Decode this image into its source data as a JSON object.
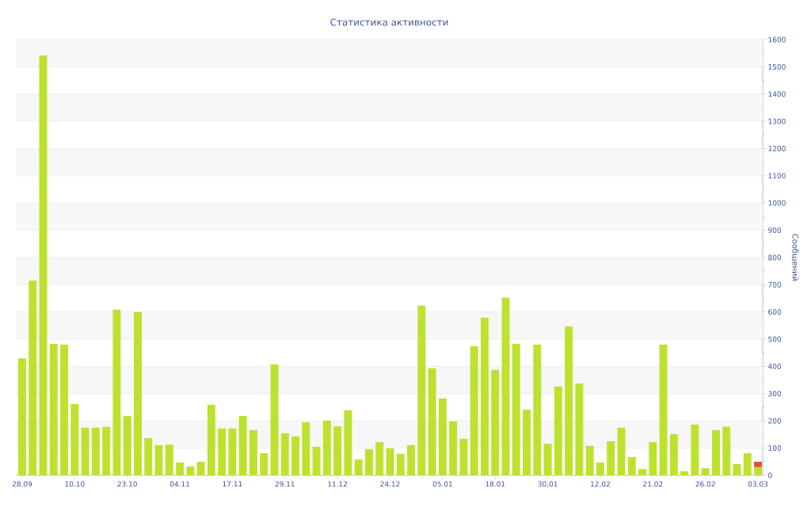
{
  "chart_data": {
    "type": "bar",
    "title": "Статистика активности",
    "ylabel": "Сообщений",
    "categories": [
      "28.09",
      null,
      null,
      null,
      null,
      "10.10",
      null,
      null,
      null,
      null,
      "23.10",
      null,
      null,
      null,
      null,
      "04.11",
      null,
      null,
      null,
      null,
      "17.11",
      null,
      null,
      null,
      null,
      "29.11",
      null,
      null,
      null,
      null,
      "11.12",
      null,
      null,
      null,
      null,
      "24.12",
      null,
      null,
      null,
      null,
      "05.01",
      null,
      null,
      null,
      null,
      "18.01",
      null,
      null,
      null,
      null,
      "30.01",
      null,
      null,
      null,
      null,
      "12.02",
      null,
      null,
      null,
      null,
      "21.02",
      null,
      null,
      null,
      null,
      "26.02",
      null,
      null,
      null,
      null,
      "03.03"
    ],
    "stacked": true,
    "series": [
      {
        "color": "#bce22f",
        "values": [
          430,
          715,
          1542,
          483,
          480,
          262,
          175,
          175,
          178,
          608,
          218,
          600,
          137,
          111,
          113,
          47,
          32,
          50,
          259,
          172,
          172,
          218,
          166,
          81,
          407,
          154,
          143,
          195,
          105,
          201,
          180,
          239,
          58,
          96,
          122,
          99,
          79,
          111,
          623,
          393,
          282,
          198,
          134,
          474,
          579,
          387,
          652,
          483,
          241,
          480,
          116,
          326,
          547,
          337,
          108,
          47,
          125,
          175,
          67,
          23,
          122,
          480,
          151,
          15,
          186,
          26,
          166,
          178,
          41,
          81,
          30
        ]
      },
      {
        "color": "#e0562b",
        "values": [
          null,
          null,
          null,
          null,
          null,
          null,
          null,
          null,
          null,
          null,
          null,
          null,
          null,
          null,
          null,
          null,
          null,
          null,
          null,
          null,
          null,
          null,
          null,
          null,
          null,
          null,
          null,
          null,
          null,
          null,
          null,
          null,
          null,
          null,
          null,
          null,
          null,
          null,
          null,
          null,
          null,
          null,
          null,
          null,
          null,
          null,
          null,
          null,
          null,
          null,
          null,
          null,
          null,
          null,
          null,
          null,
          null,
          null,
          null,
          null,
          null,
          null,
          null,
          null,
          null,
          null,
          null,
          null,
          null,
          null,
          20
        ]
      }
    ],
    "ylim": [
      0,
      1600
    ],
    "yticks": [
      0,
      100,
      200,
      300,
      400,
      500,
      600,
      700,
      800,
      900,
      1000,
      1100,
      1200,
      1300,
      1400,
      1500,
      1600
    ],
    "grid": "y"
  }
}
